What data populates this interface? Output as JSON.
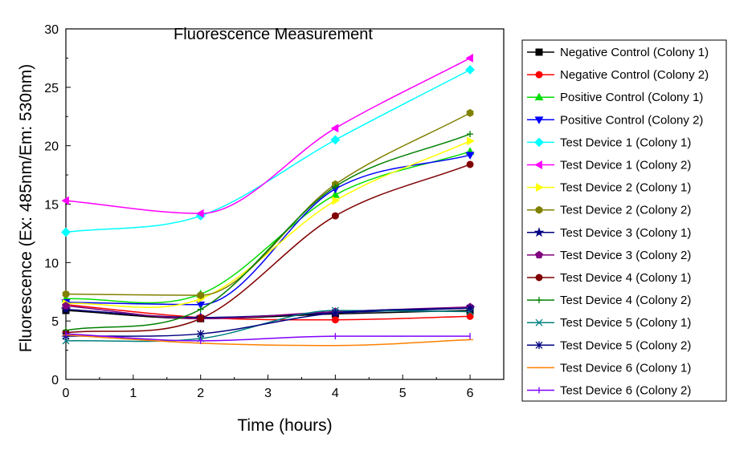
{
  "chart_data": {
    "type": "line",
    "title": "Fluorescence Measurement",
    "xlabel": "Time (hours)",
    "ylabel": "Fluorescence (Ex: 485nm/Em: 530nm)",
    "xlim": [
      0,
      6.5
    ],
    "ylim": [
      0,
      30
    ],
    "xticks": [
      0,
      1,
      2,
      3,
      4,
      5,
      6
    ],
    "yticks": [
      0,
      5,
      10,
      15,
      20,
      25,
      30
    ],
    "grid": false,
    "legend_position": "right",
    "x": [
      0,
      2,
      4,
      6
    ],
    "series": [
      {
        "name": "Negative Control (Colony 1)",
        "color": "#000000",
        "marker": "square",
        "values": [
          5.9,
          5.2,
          5.6,
          5.9
        ]
      },
      {
        "name": "Negative Control (Colony 2)",
        "color": "#ff0000",
        "marker": "circle",
        "values": [
          6.4,
          5.3,
          5.1,
          5.4
        ]
      },
      {
        "name": "Positive Control (Colony 1)",
        "color": "#00dd00",
        "marker": "triangle-up",
        "values": [
          6.9,
          7.3,
          15.8,
          19.5
        ]
      },
      {
        "name": "Positive Control (Colony 2)",
        "color": "#0000ff",
        "marker": "triangle-down",
        "values": [
          6.6,
          6.4,
          16.3,
          19.2
        ]
      },
      {
        "name": "Test Device 1 (Colony 1)",
        "color": "#00ffff",
        "marker": "diamond",
        "values": [
          12.6,
          14.0,
          20.5,
          26.5
        ]
      },
      {
        "name": "Test Device 1 (Colony 2)",
        "color": "#ff00ff",
        "marker": "triangle-left",
        "values": [
          15.3,
          14.2,
          21.5,
          27.5
        ]
      },
      {
        "name": "Test Device 2 (Colony 1)",
        "color": "#ffff00",
        "marker": "triangle-right",
        "values": [
          6.5,
          6.9,
          15.3,
          20.4
        ]
      },
      {
        "name": "Test Device 2 (Colony 2)",
        "color": "#808000",
        "marker": "hexagon",
        "values": [
          7.3,
          7.2,
          16.7,
          22.8
        ]
      },
      {
        "name": "Test Device 3 (Colony 1)",
        "color": "#000080",
        "marker": "star",
        "values": [
          6.0,
          5.3,
          5.7,
          6.1
        ]
      },
      {
        "name": "Test Device 3 (Colony 2)",
        "color": "#800080",
        "marker": "pentagon",
        "values": [
          6.3,
          5.2,
          5.8,
          6.2
        ]
      },
      {
        "name": "Test Device 4 (Colony 1)",
        "color": "#800000",
        "marker": "circle",
        "values": [
          4.0,
          5.2,
          14.0,
          18.4
        ]
      },
      {
        "name": "Test Device 4 (Colony 2)",
        "color": "#008000",
        "marker": "plus",
        "values": [
          4.2,
          6.0,
          16.5,
          21.0
        ]
      },
      {
        "name": "Test Device 5 (Colony 1)",
        "color": "#008080",
        "marker": "x",
        "values": [
          3.3,
          3.5,
          5.9,
          5.8
        ]
      },
      {
        "name": "Test Device 5 (Colony 2)",
        "color": "#000080",
        "marker": "asterisk",
        "values": [
          3.7,
          3.9,
          5.7,
          6.1
        ]
      },
      {
        "name": "Test Device 6 (Colony 1)",
        "color": "#ff8000",
        "marker": "dash",
        "values": [
          3.8,
          3.1,
          2.9,
          3.4
        ]
      },
      {
        "name": "Test Device 6 (Colony 2)",
        "color": "#8000ff",
        "marker": "vbar",
        "values": [
          3.9,
          3.3,
          3.7,
          3.7
        ]
      }
    ]
  }
}
